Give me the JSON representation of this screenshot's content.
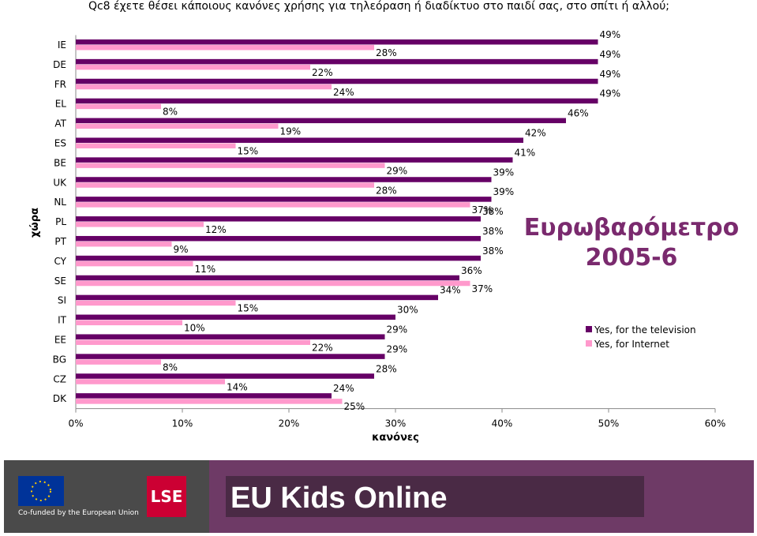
{
  "chart_data": {
    "type": "hbar",
    "title": "Qc8 έχετε θέσει κάποιους κανόνες χρήσης για τηλεόραση ή διαδίκτυο στο παιδί σας, στο σπίτι ή αλλού;",
    "x_label": "κανόνες",
    "y_label": "χώρα",
    "annotation": [
      "Ευρωβαρόμετρο",
      "2005-6"
    ],
    "categories": [
      "IE",
      "DE",
      "FR",
      "EL",
      "AT",
      "ES",
      "BE",
      "UK",
      "NL",
      "PL",
      "PT",
      "CY",
      "SE",
      "SI",
      "IT",
      "EE",
      "BG",
      "CZ",
      "DK"
    ],
    "series": [
      {
        "name": "Yes, for the television",
        "color": "#660066",
        "values": [
          49,
          49,
          49,
          49,
          46,
          42,
          41,
          39,
          39,
          38,
          38,
          38,
          36,
          34,
          30,
          29,
          29,
          28,
          24
        ],
        "value_labels": [
          "49%",
          "49%",
          "49%",
          "49%",
          "46%",
          "42%",
          "41%",
          "39%",
          "39%",
          "38%",
          "38%",
          "38%",
          "36%",
          "34%",
          "30%",
          "29%",
          "29%",
          "28%",
          "24%"
        ]
      },
      {
        "name": "Yes, for Internet",
        "color": "#ff99cc",
        "values": [
          28,
          22,
          24,
          8,
          19,
          15,
          29,
          28,
          37,
          12,
          9,
          11,
          37,
          15,
          10,
          22,
          8,
          14,
          25
        ],
        "value_labels": [
          "28%",
          "22%",
          "24%",
          "8%",
          "19%",
          "15%",
          "29%",
          "28%",
          "37%",
          "12%",
          "9%",
          "11%",
          "37%",
          "15%",
          "10%",
          "22%",
          "8%",
          "14%",
          "25%"
        ]
      }
    ],
    "xlim": [
      0,
      60
    ],
    "xticks": [
      {
        "value": 0,
        "label": "0%"
      },
      {
        "value": 10,
        "label": "10%"
      },
      {
        "value": 20,
        "label": "20%"
      },
      {
        "value": 30,
        "label": "30%"
      },
      {
        "value": 40,
        "label": "40%"
      },
      {
        "value": 50,
        "label": "50%"
      },
      {
        "value": 60,
        "label": "60%"
      }
    ],
    "legend": "right"
  },
  "footer": {
    "eu": "Co-funded by the European Union",
    "lse": "LSE",
    "brand": "EU Kids Online"
  }
}
